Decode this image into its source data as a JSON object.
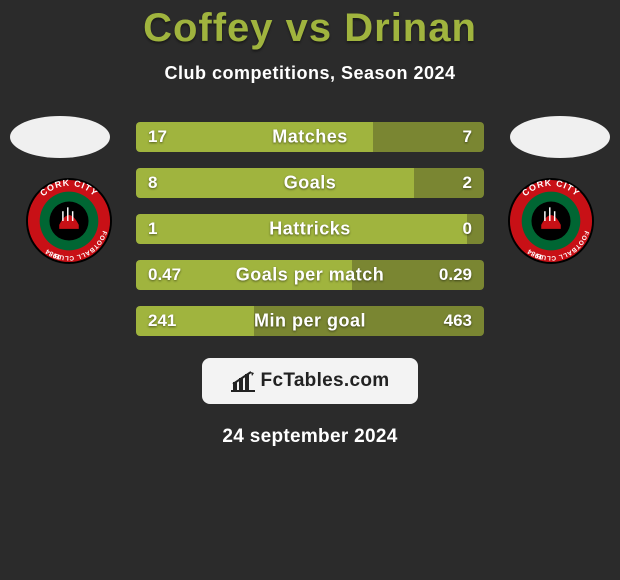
{
  "colors": {
    "background": "#2b2b2b",
    "title": "#a0b43e",
    "text": "#ffffff",
    "bar_left": "#a0b43e",
    "bar_right": "#7a8632",
    "watermark_bg": "#f3f3f3",
    "watermark_text": "#222222",
    "avatar_bg": "#f0f0f0",
    "crest_outer": "#c81016",
    "crest_inner": "#006633",
    "crest_center": "#000000"
  },
  "header": {
    "title": "Coffey vs Drinan",
    "subtitle": "Club competitions, Season 2024"
  },
  "stats": {
    "rows": [
      {
        "label": "Matches",
        "left": "17",
        "right": "7",
        "left_pct": 68,
        "right_pct": 32
      },
      {
        "label": "Goals",
        "left": "8",
        "right": "2",
        "left_pct": 80,
        "right_pct": 20
      },
      {
        "label": "Hattricks",
        "left": "1",
        "right": "0",
        "left_pct": 95,
        "right_pct": 5
      },
      {
        "label": "Goals per match",
        "left": "0.47",
        "right": "0.29",
        "left_pct": 62,
        "right_pct": 38
      },
      {
        "label": "Min per goal",
        "left": "241",
        "right": "463",
        "left_pct": 34,
        "right_pct": 66
      }
    ]
  },
  "crest": {
    "line1": "CORK CITY",
    "line2": "FOOTBALL CLUB",
    "year": "1984"
  },
  "watermark": {
    "text": "FcTables.com"
  },
  "footer": {
    "date": "24 september 2024"
  }
}
